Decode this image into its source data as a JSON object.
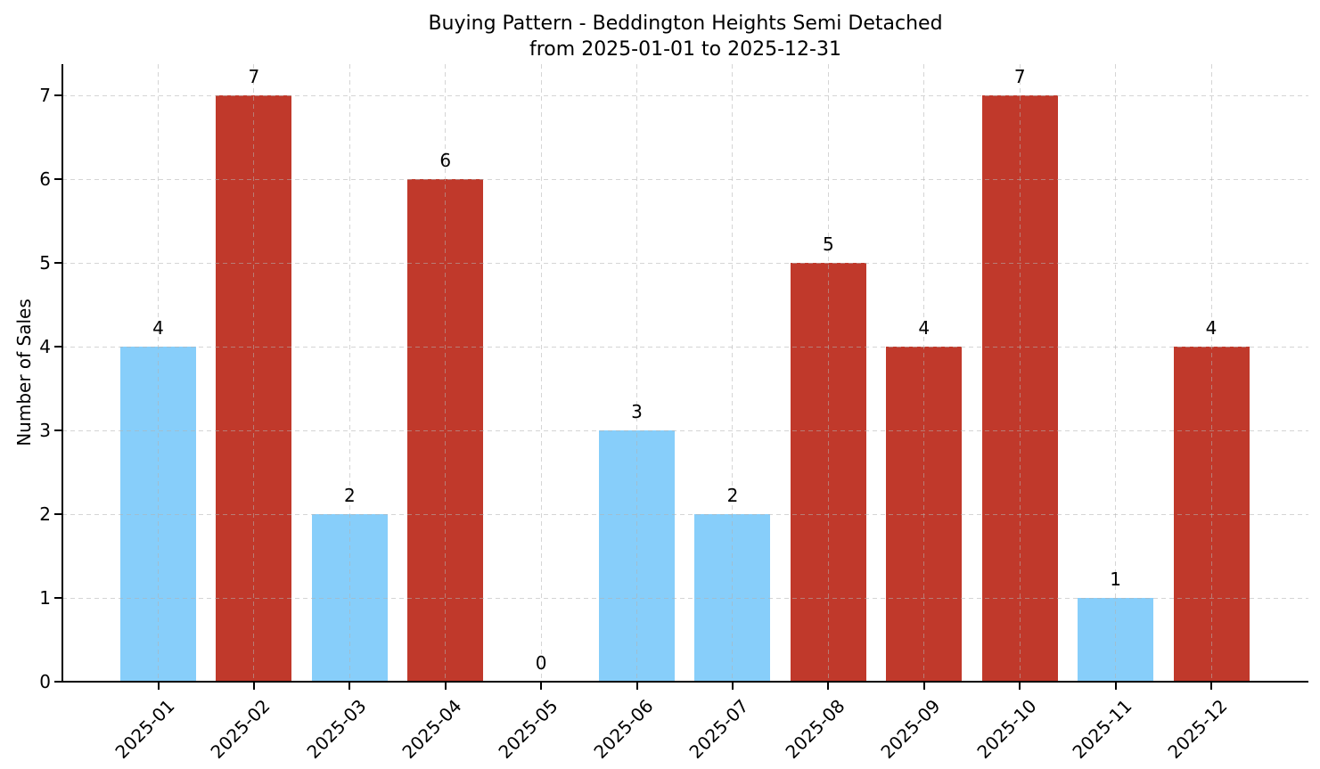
{
  "chart_data": {
    "type": "bar",
    "title": "Buying Pattern - Beddington Heights Semi Detached",
    "subtitle": "from 2025-01-01 to 2025-12-31",
    "xlabel": "",
    "ylabel": "Number of Sales",
    "categories": [
      "2025-01",
      "2025-02",
      "2025-03",
      "2025-04",
      "2025-05",
      "2025-06",
      "2025-07",
      "2025-08",
      "2025-09",
      "2025-10",
      "2025-11",
      "2025-12"
    ],
    "values": [
      4,
      7,
      2,
      6,
      0,
      3,
      2,
      5,
      4,
      7,
      1,
      4
    ],
    "value_labels": [
      "4",
      "7",
      "2",
      "6",
      "0",
      "3",
      "2",
      "5",
      "4",
      "7",
      "1",
      "4"
    ],
    "bar_colors": [
      "#87CEFA",
      "#C0392B",
      "#87CEFA",
      "#C0392B",
      "#87CEFA",
      "#87CEFA",
      "#87CEFA",
      "#C0392B",
      "#C0392B",
      "#C0392B",
      "#87CEFA",
      "#C0392B"
    ],
    "palette": {
      "skyblue": "#87CEFA",
      "firebrick": "#C0392B"
    },
    "yticks": [
      0,
      1,
      2,
      3,
      4,
      5,
      6,
      7
    ],
    "ylim": [
      0,
      7.37
    ],
    "grid": {
      "style": "dashed",
      "axes": "both",
      "color": "#c8c8c8"
    },
    "legend": null,
    "axis_color": "#000000",
    "text_color": "#000000",
    "background": "#ffffff"
  }
}
